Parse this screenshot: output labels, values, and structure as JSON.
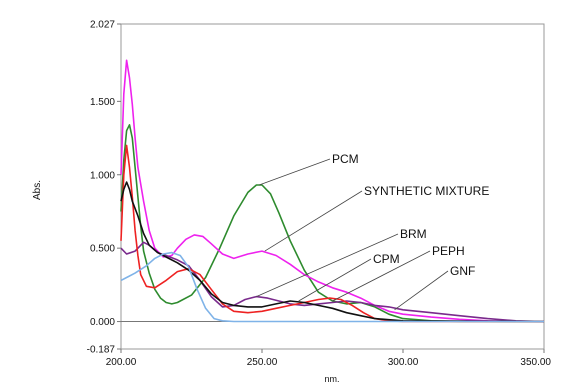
{
  "chart_data": {
    "type": "line",
    "title": "",
    "xlabel": "nm.",
    "ylabel": "Abs.",
    "xlim": [
      200,
      350
    ],
    "ylim": [
      -0.187,
      2.027
    ],
    "grid": false,
    "legend": "none",
    "x_ticks": [
      {
        "value": 200,
        "label": "200.00"
      },
      {
        "value": 250,
        "label": "250.00"
      },
      {
        "value": 300,
        "label": "300.00"
      },
      {
        "value": 350,
        "label": "350.00"
      }
    ],
    "y_ticks": [
      {
        "value": 2.027,
        "label": "2.027"
      },
      {
        "value": 1.5,
        "label": "1.500"
      },
      {
        "value": 1.0,
        "label": "1.000"
      },
      {
        "value": 0.5,
        "label": "0.500"
      },
      {
        "value": 0.0,
        "label": "0.000"
      },
      {
        "value": -0.187,
        "label": "-0.187"
      }
    ],
    "zero_line": 0,
    "series": [
      {
        "name": "PCM",
        "color": "#2e8b2e",
        "label_point": [
          249,
          0.93
        ],
        "points": [
          [
            200,
            0.75
          ],
          [
            201,
            1.1
          ],
          [
            202,
            1.3
          ],
          [
            203,
            1.34
          ],
          [
            204,
            1.25
          ],
          [
            205,
            1.05
          ],
          [
            206,
            0.85
          ],
          [
            207,
            0.65
          ],
          [
            208,
            0.48
          ],
          [
            210,
            0.33
          ],
          [
            212,
            0.22
          ],
          [
            214,
            0.16
          ],
          [
            216,
            0.13
          ],
          [
            218,
            0.12
          ],
          [
            220,
            0.13
          ],
          [
            225,
            0.18
          ],
          [
            230,
            0.3
          ],
          [
            235,
            0.5
          ],
          [
            240,
            0.72
          ],
          [
            245,
            0.88
          ],
          [
            248,
            0.93
          ],
          [
            250,
            0.93
          ],
          [
            253,
            0.87
          ],
          [
            256,
            0.74
          ],
          [
            260,
            0.55
          ],
          [
            265,
            0.35
          ],
          [
            270,
            0.2
          ],
          [
            275,
            0.14
          ],
          [
            280,
            0.12
          ],
          [
            285,
            0.13
          ],
          [
            290,
            0.1
          ],
          [
            295,
            0.05
          ],
          [
            300,
            0.02
          ],
          [
            310,
            0.005
          ],
          [
            320,
            0.0
          ],
          [
            350,
            0.0
          ]
        ]
      },
      {
        "name": "SYNTHETIC MIXTURE",
        "color": "#ee22ee",
        "label_point": [
          251,
          0.48
        ],
        "points": [
          [
            200,
            1.0
          ],
          [
            201,
            1.55
          ],
          [
            202,
            1.78
          ],
          [
            203,
            1.66
          ],
          [
            204,
            1.48
          ],
          [
            205,
            1.25
          ],
          [
            206,
            1.05
          ],
          [
            208,
            0.82
          ],
          [
            210,
            0.62
          ],
          [
            212,
            0.5
          ],
          [
            215,
            0.44
          ],
          [
            218,
            0.45
          ],
          [
            220,
            0.5
          ],
          [
            223,
            0.56
          ],
          [
            226,
            0.59
          ],
          [
            229,
            0.58
          ],
          [
            232,
            0.53
          ],
          [
            236,
            0.46
          ],
          [
            240,
            0.43
          ],
          [
            245,
            0.46
          ],
          [
            250,
            0.48
          ],
          [
            255,
            0.45
          ],
          [
            260,
            0.39
          ],
          [
            265,
            0.32
          ],
          [
            270,
            0.27
          ],
          [
            275,
            0.23
          ],
          [
            280,
            0.2
          ],
          [
            285,
            0.16
          ],
          [
            290,
            0.11
          ],
          [
            295,
            0.07
          ],
          [
            300,
            0.05
          ],
          [
            310,
            0.03
          ],
          [
            320,
            0.015
          ],
          [
            330,
            0.005
          ],
          [
            350,
            0.0
          ]
        ]
      },
      {
        "name": "BRM",
        "color": "#7a2a8c",
        "label_point": [
          248,
          0.17
        ],
        "points": [
          [
            200,
            0.5
          ],
          [
            202,
            0.46
          ],
          [
            205,
            0.48
          ],
          [
            208,
            0.54
          ],
          [
            210,
            0.52
          ],
          [
            213,
            0.47
          ],
          [
            216,
            0.45
          ],
          [
            220,
            0.42
          ],
          [
            224,
            0.38
          ],
          [
            228,
            0.28
          ],
          [
            232,
            0.17
          ],
          [
            236,
            0.1
          ],
          [
            240,
            0.11
          ],
          [
            244,
            0.15
          ],
          [
            248,
            0.17
          ],
          [
            252,
            0.16
          ],
          [
            256,
            0.14
          ],
          [
            260,
            0.12
          ],
          [
            265,
            0.11
          ],
          [
            270,
            0.12
          ],
          [
            275,
            0.13
          ],
          [
            280,
            0.14
          ],
          [
            285,
            0.13
          ],
          [
            290,
            0.11
          ],
          [
            295,
            0.1
          ],
          [
            300,
            0.08
          ],
          [
            310,
            0.06
          ],
          [
            320,
            0.04
          ],
          [
            330,
            0.02
          ],
          [
            340,
            0.005
          ],
          [
            350,
            0.0
          ]
        ]
      },
      {
        "name": "CPM",
        "color": "#ee2222",
        "label_point": [
          263,
          0.14
        ],
        "points": [
          [
            200,
            0.55
          ],
          [
            201,
            1.0
          ],
          [
            202,
            1.2
          ],
          [
            203,
            1.05
          ],
          [
            204,
            0.85
          ],
          [
            205,
            0.62
          ],
          [
            206,
            0.45
          ],
          [
            207,
            0.32
          ],
          [
            209,
            0.24
          ],
          [
            212,
            0.23
          ],
          [
            216,
            0.28
          ],
          [
            220,
            0.34
          ],
          [
            224,
            0.36
          ],
          [
            228,
            0.32
          ],
          [
            232,
            0.22
          ],
          [
            236,
            0.12
          ],
          [
            240,
            0.07
          ],
          [
            245,
            0.06
          ],
          [
            250,
            0.07
          ],
          [
            255,
            0.09
          ],
          [
            260,
            0.11
          ],
          [
            265,
            0.13
          ],
          [
            270,
            0.15
          ],
          [
            274,
            0.16
          ],
          [
            278,
            0.15
          ],
          [
            282,
            0.11
          ],
          [
            286,
            0.06
          ],
          [
            290,
            0.02
          ],
          [
            295,
            0.005
          ],
          [
            300,
            0.0
          ],
          [
            350,
            0.0
          ]
        ]
      },
      {
        "name": "PEPH",
        "color": "#111111",
        "label_point": [
          275,
          0.14
        ],
        "points": [
          [
            200,
            0.82
          ],
          [
            201,
            0.9
          ],
          [
            202,
            0.95
          ],
          [
            203,
            0.9
          ],
          [
            204,
            0.82
          ],
          [
            206,
            0.72
          ],
          [
            208,
            0.6
          ],
          [
            210,
            0.52
          ],
          [
            213,
            0.47
          ],
          [
            216,
            0.44
          ],
          [
            220,
            0.4
          ],
          [
            224,
            0.35
          ],
          [
            228,
            0.28
          ],
          [
            232,
            0.19
          ],
          [
            236,
            0.13
          ],
          [
            240,
            0.11
          ],
          [
            245,
            0.1
          ],
          [
            250,
            0.1
          ],
          [
            255,
            0.12
          ],
          [
            260,
            0.14
          ],
          [
            265,
            0.13
          ],
          [
            270,
            0.11
          ],
          [
            275,
            0.09
          ],
          [
            280,
            0.06
          ],
          [
            285,
            0.04
          ],
          [
            290,
            0.02
          ],
          [
            300,
            0.005
          ],
          [
            350,
            0.0
          ]
        ]
      },
      {
        "name": "GNF",
        "color": "#7fb3e8",
        "label_point": [
          297,
          0.08
        ],
        "points": [
          [
            200,
            0.28
          ],
          [
            202,
            0.3
          ],
          [
            205,
            0.33
          ],
          [
            209,
            0.38
          ],
          [
            212,
            0.43
          ],
          [
            215,
            0.46
          ],
          [
            218,
            0.47
          ],
          [
            221,
            0.45
          ],
          [
            224,
            0.37
          ],
          [
            227,
            0.22
          ],
          [
            230,
            0.09
          ],
          [
            233,
            0.02
          ],
          [
            236,
            0.005
          ],
          [
            240,
            0.0
          ],
          [
            350,
            0.0
          ]
        ]
      }
    ],
    "annotations": [
      {
        "text": "PCM",
        "series": "PCM"
      },
      {
        "text": "SYNTHETIC MIXTURE",
        "series": "SYNTHETIC MIXTURE"
      },
      {
        "text": "BRM",
        "series": "BRM"
      },
      {
        "text": "CPM",
        "series": "CPM"
      },
      {
        "text": "PEPH",
        "series": "PEPH"
      },
      {
        "text": "GNF",
        "series": "GNF"
      }
    ]
  }
}
